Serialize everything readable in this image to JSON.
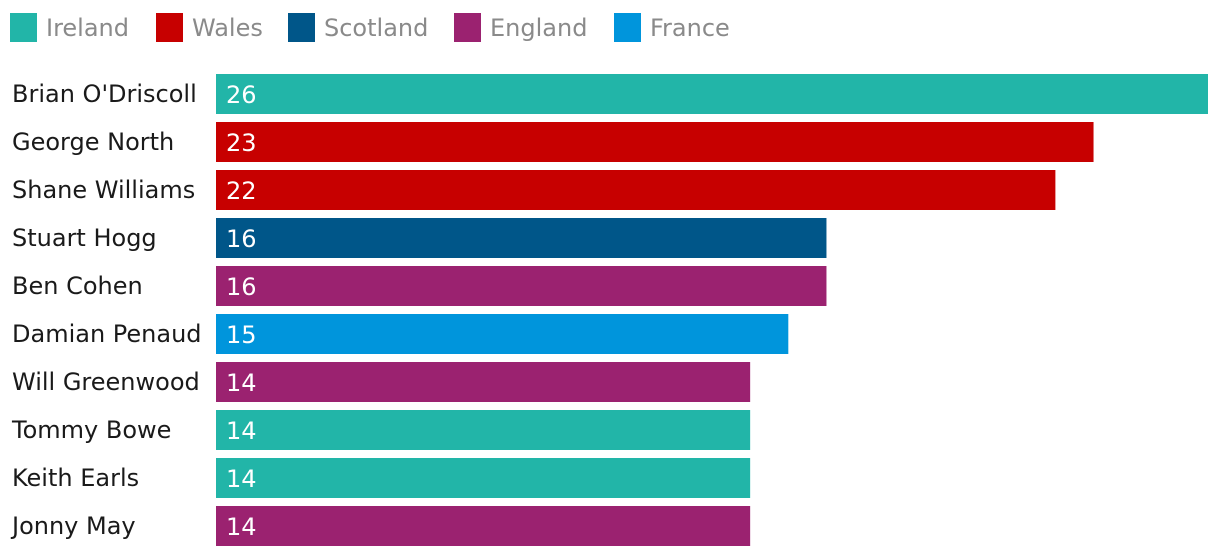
{
  "chart_data": {
    "type": "bar",
    "orientation": "horizontal",
    "categories": [
      "Brian O'Driscoll",
      "George North",
      "Shane Williams",
      "Stuart Hogg",
      "Ben Cohen",
      "Damian Penaud",
      "Will Greenwood",
      "Tommy Bowe",
      "Keith Earls",
      "Jonny May"
    ],
    "values": [
      26,
      23,
      22,
      16,
      16,
      15,
      14,
      14,
      14,
      14
    ],
    "countries": [
      "Ireland",
      "Wales",
      "Wales",
      "Scotland",
      "England",
      "France",
      "England",
      "Ireland",
      "Ireland",
      "England"
    ],
    "legend": {
      "placement": "top-left",
      "entries": [
        {
          "label": "Ireland",
          "color": "#22b5a8"
        },
        {
          "label": "Wales",
          "color": "#c70000"
        },
        {
          "label": "Scotland",
          "color": "#005689"
        },
        {
          "label": "England",
          "color": "#9b2270"
        },
        {
          "label": "France",
          "color": "#0095dc"
        }
      ]
    },
    "xlim": [
      0,
      26
    ],
    "grid": false
  }
}
